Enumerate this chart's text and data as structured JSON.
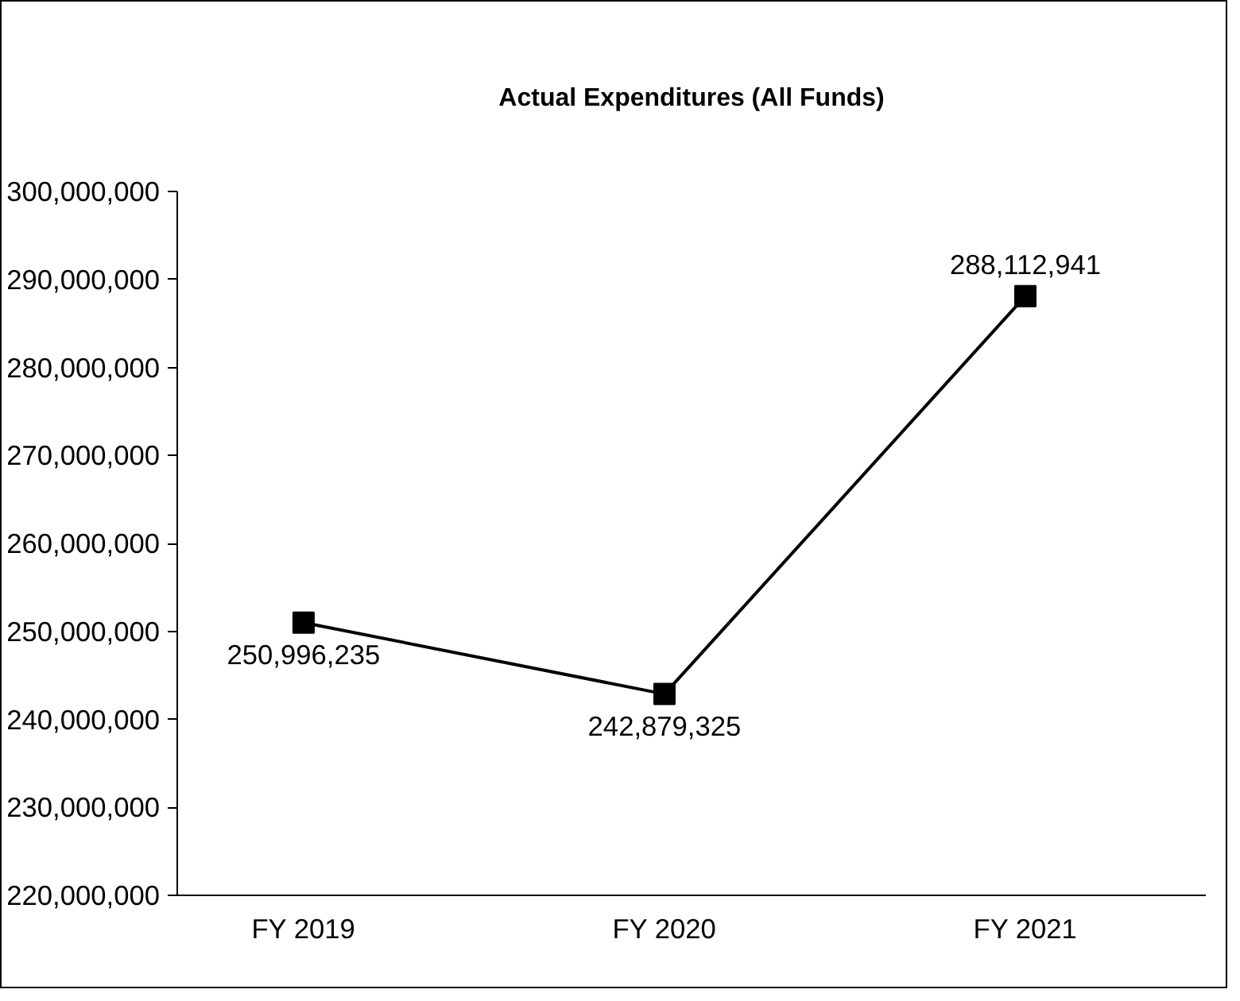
{
  "chart_data": {
    "type": "line",
    "title": "Actual Expenditures (All Funds)",
    "categories": [
      "FY 2019",
      "FY 2020",
      "FY 2021"
    ],
    "series": [
      {
        "color": "#000000",
        "values": [
          250996235,
          242879325,
          288112941
        ],
        "value_labels": [
          "250,996,235",
          "242,879,325",
          "288,112,941"
        ]
      }
    ],
    "ylim": [
      220000000,
      300000000
    ],
    "yticks": [
      {
        "value": 220000000,
        "label": "220,000,000"
      },
      {
        "value": 230000000,
        "label": "230,000,000"
      },
      {
        "value": 240000000,
        "label": "240,000,000"
      },
      {
        "value": 250000000,
        "label": "250,000,000"
      },
      {
        "value": 260000000,
        "label": "260,000,000"
      },
      {
        "value": 270000000,
        "label": "270,000,000"
      },
      {
        "value": 280000000,
        "label": "280,000,000"
      },
      {
        "value": 290000000,
        "label": "290,000,000"
      },
      {
        "value": 300000000,
        "label": "300,000,000"
      }
    ],
    "marker": "square",
    "grid": false
  }
}
